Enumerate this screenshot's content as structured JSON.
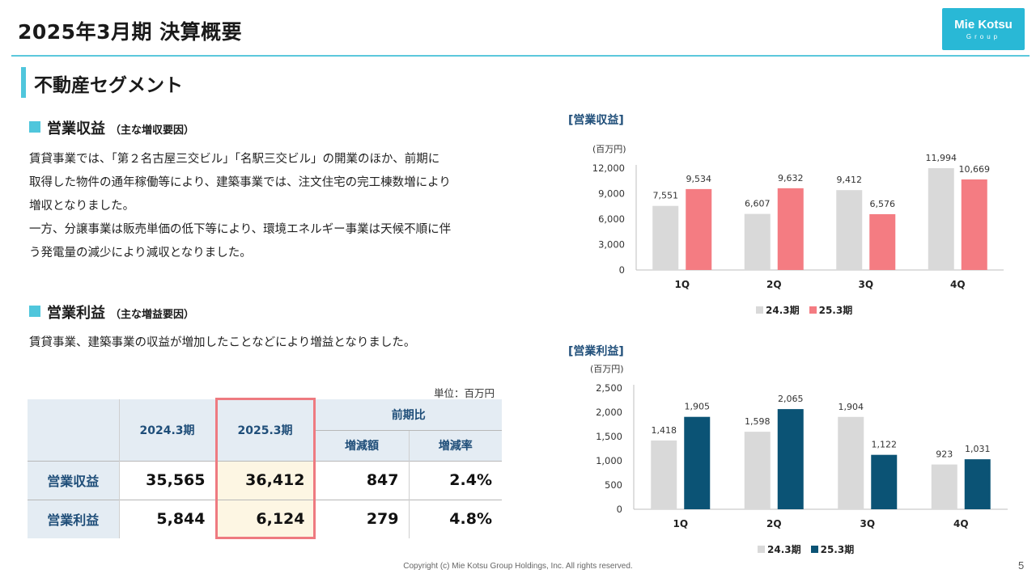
{
  "header": {
    "title": "2025年3月期 決算概要",
    "logo_line1": "Mie Kotsu",
    "logo_line2": "Group"
  },
  "section": {
    "title": "不動産セグメント"
  },
  "revenue_section": {
    "heading": "営業収益",
    "note": "（主な増収要因）",
    "lines": [
      "賃貸事業では、「第２名古屋三交ビル」「名駅三交ビル」の開業のほか、前期に",
      "取得した物件の通年稼働等により、建築事業では、注文住宅の完工棟数増により",
      "増収となりました。",
      "一方、分譲事業は販売単価の低下等により、環境エネルギー事業は天候不順に伴",
      "う発電量の減少により減収となりました。"
    ]
  },
  "profit_section": {
    "heading": "営業利益",
    "note": "（主な増益要因）",
    "lines": [
      "賃貸事業、建築事業の収益が増加したことなどにより増益となりました。"
    ]
  },
  "table": {
    "unit": "単位：百万円",
    "col_prev": "2024.3期",
    "col_curr": "2025.3期",
    "col_compare": "前期比",
    "col_diff": "増減額",
    "col_rate": "増減率",
    "rows": [
      {
        "label": "営業収益",
        "prev": "35,565",
        "curr": "36,412",
        "diff": "847",
        "rate": "2.4%"
      },
      {
        "label": "営業利益",
        "prev": "5,844",
        "curr": "6,124",
        "diff": "279",
        "rate": "4.8%"
      }
    ]
  },
  "chart_data": [
    {
      "type": "bar",
      "title": "[営業収益]",
      "ylabel": "(百万円)",
      "categories": [
        "1Q",
        "2Q",
        "3Q",
        "4Q"
      ],
      "series": [
        {
          "name": "24.3期",
          "color": "#d9d9d9",
          "values": [
            7551,
            6607,
            9412,
            11994
          ],
          "labels": [
            "7,551",
            "6,607",
            "9,412",
            "11,994"
          ]
        },
        {
          "name": "25.3期",
          "color": "#f47c82",
          "values": [
            9534,
            9632,
            6576,
            10669
          ],
          "labels": [
            "9,534",
            "9,632",
            "6,576",
            "10,669"
          ]
        }
      ],
      "ylim": [
        0,
        12000
      ],
      "yticks": [
        0,
        3000,
        6000,
        9000,
        12000
      ],
      "ytick_labels": [
        "0",
        "3,000",
        "6,000",
        "9,000",
        "12,000"
      ],
      "legend": "bottom"
    },
    {
      "type": "bar",
      "title": "[営業利益]",
      "ylabel": "(百万円)",
      "categories": [
        "1Q",
        "2Q",
        "3Q",
        "4Q"
      ],
      "series": [
        {
          "name": "24.3期",
          "color": "#d9d9d9",
          "values": [
            1418,
            1598,
            1904,
            923
          ],
          "labels": [
            "1,418",
            "1,598",
            "1,904",
            "923"
          ]
        },
        {
          "name": "25.3期",
          "color": "#0b5375",
          "values": [
            1905,
            2065,
            1122,
            1031
          ],
          "labels": [
            "1,905",
            "2,065",
            "1,122",
            "1,031"
          ]
        }
      ],
      "ylim": [
        0,
        2500
      ],
      "yticks": [
        0,
        500,
        1000,
        1500,
        2000,
        2500
      ],
      "ytick_labels": [
        "0",
        "500",
        "1,000",
        "1,500",
        "2,000",
        "2,500"
      ],
      "legend": "bottom"
    }
  ],
  "footer": {
    "copyright": "Copyright (c) Mie Kotsu Group Holdings, Inc. All rights reserved.",
    "page": "5"
  }
}
